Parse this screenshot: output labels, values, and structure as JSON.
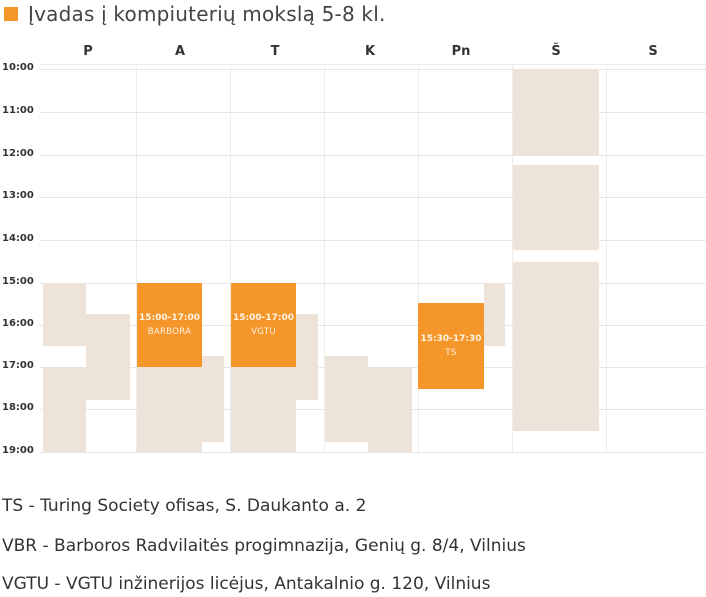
{
  "colors": {
    "accent": "#f5962a",
    "busy": "#ede3d8"
  },
  "header": {
    "title": "Įvadas į kompiuterių mokslą 5-8 kl."
  },
  "calendar": {
    "days": [
      "P",
      "A",
      "T",
      "K",
      "Pn",
      "Š",
      "S"
    ],
    "times": [
      "10:00",
      "11:00",
      "12:00",
      "13:00",
      "14:00",
      "15:00",
      "16:00",
      "17:00",
      "18:00",
      "19:00"
    ],
    "events": [
      {
        "time": "15:00-17:00",
        "place": "BARBORA"
      },
      {
        "time": "15:00-17:00",
        "place": "VGTU"
      },
      {
        "time": "15:30-17:30",
        "place": "TS"
      }
    ]
  },
  "legend": [
    "TS - Turing Society ofisas, S. Daukanto a. 2",
    "VBR - Barboros Radvilaitės progimnazija, Genių g. 8/4, Vilnius",
    "VGTU - VGTU inžinerijos licėjus, Antakalnio g. 120, Vilnius"
  ]
}
